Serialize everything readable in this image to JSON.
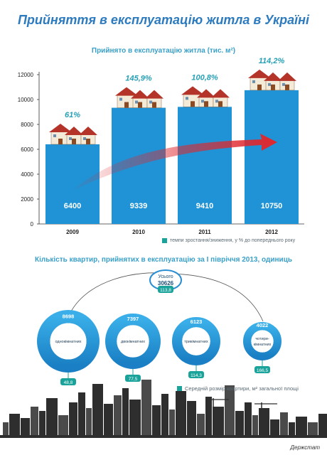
{
  "title": "Прийняття в експлуатацію житла в Україні",
  "source": "Держстат",
  "colors": {
    "bar": "#1f93d6",
    "title": "#2d7bbf",
    "subtitle": "#3aa0c8",
    "legend_swatch": "#1aa39a",
    "arrow": "#d8282e"
  },
  "chart_data": [
    {
      "type": "bar",
      "title": "Прийнято в експлуатацію житла (тис. м²)",
      "categories": [
        "2009",
        "2010",
        "2011",
        "2012"
      ],
      "values": [
        6400,
        9339,
        9410,
        10750
      ],
      "value_labels": [
        "6400",
        "9339",
        "9410",
        "10750"
      ],
      "growth_labels": [
        "61%",
        "145,9%",
        "100,8%",
        "114,2%"
      ],
      "yticks": [
        "0",
        "2000",
        "4000",
        "6000",
        "8000",
        "10000",
        "12000"
      ],
      "ylim": [
        0,
        12000
      ],
      "legend": "темпи зростання/зниження, у % до попереднього року",
      "grid": false
    },
    {
      "type": "donut",
      "title": "Кількість квартир, прийнятих в експлуатацію за І півріччя 2013, одиниць",
      "total": {
        "label": "Усього",
        "value": "30626",
        "avg_area": "113,8"
      },
      "categories": [
        "однокімнатних",
        "двокімнатних",
        "трикімнатних",
        "чотири-\nкімнатних"
      ],
      "values": [
        8698,
        7397,
        6123,
        4022
      ],
      "value_labels": [
        "8698",
        "7397",
        "6123",
        "4022"
      ],
      "avg_area_labels": [
        "48,8",
        "77,5",
        "114,3",
        "166,5"
      ],
      "legend": "Середній розмір квартири, м² загальної площі"
    }
  ]
}
